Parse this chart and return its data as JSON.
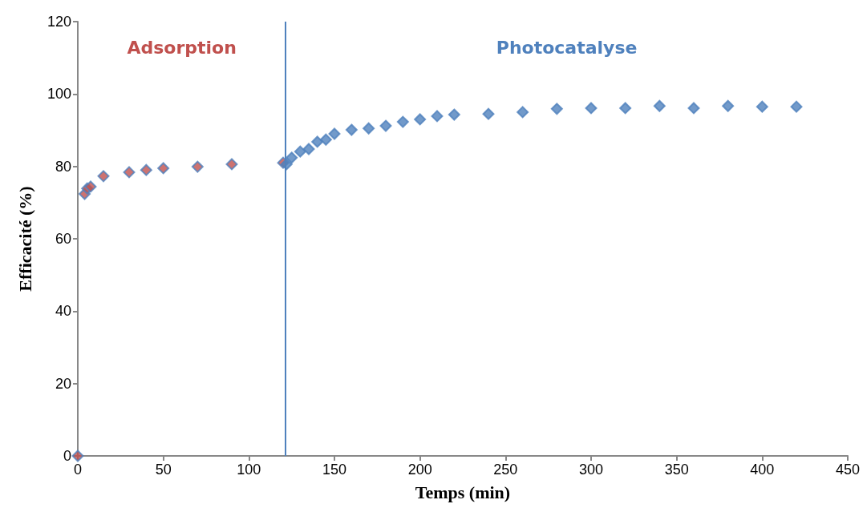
{
  "chart_data": {
    "type": "scatter",
    "xlabel": "Temps (min)",
    "ylabel": "Efficacité (%)",
    "xlim": [
      0,
      450
    ],
    "xticks": [
      0,
      50,
      100,
      150,
      200,
      250,
      300,
      350,
      400,
      450
    ],
    "ylim": [
      0,
      120
    ],
    "yticks": [
      0,
      20,
      40,
      60,
      80,
      100,
      120
    ],
    "grid": false,
    "marker": "diamond",
    "series": [
      {
        "color": "#c0504d",
        "x": [
          0,
          4,
          5.5,
          7.5,
          15,
          30,
          40,
          50,
          70,
          90,
          120
        ],
        "values": [
          0,
          72.4,
          73.9,
          74.4,
          77.3,
          78.4,
          79.0,
          79.5,
          79.9,
          80.6,
          81.0
        ]
      },
      {
        "color": "#4f81bd",
        "x": [
          122,
          125,
          130,
          135,
          140,
          145,
          150,
          160,
          170,
          180,
          190,
          200,
          210,
          220,
          240,
          260,
          280,
          300,
          320,
          340,
          360,
          380,
          400,
          420
        ],
        "values": [
          80.6,
          82.4,
          84.1,
          84.8,
          86.8,
          87.4,
          89.0,
          90.1,
          90.5,
          91.2,
          92.3,
          93.0,
          93.9,
          94.3,
          94.5,
          95.0,
          95.9,
          96.1,
          96.1,
          96.7,
          96.1,
          96.7,
          96.5,
          96.5
        ]
      }
    ],
    "ref_lines": [
      {
        "axis": "x",
        "value": 121.5,
        "color": "#4f81bd"
      }
    ],
    "annotations": [
      "Adsorption",
      "Photocatalyse"
    ]
  }
}
